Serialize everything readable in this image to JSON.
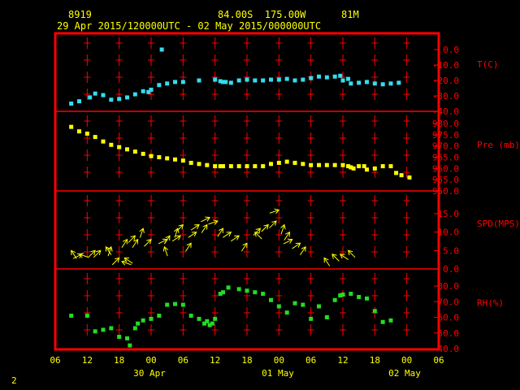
{
  "header": {
    "station_id": "8919",
    "location": "84.00S  175.00W",
    "elevation": "81M",
    "time_range": "29 Apr 2015/120000UTC - 02 May 2015/000000UTC"
  },
  "page_number": "2",
  "colors": {
    "background": "#000000",
    "frame": "#ff0000",
    "ticks": "#ff0000",
    "temperature": "#33ddee",
    "pressure": "#ffff00",
    "wind": "#ffff00",
    "humidity": "#22dd22",
    "axis_text": "#ff0000",
    "time_text": "#ffff00"
  },
  "chart_data": {
    "type": "scatter",
    "x_unit": "hours since 29 Apr 2015 06 UTC",
    "x_tick_labels": [
      "06",
      "12",
      "18",
      "00",
      "06",
      "12",
      "18",
      "00",
      "06",
      "12",
      "18",
      "00",
      "06"
    ],
    "date_labels": [
      "30 Apr",
      "01 May",
      "02 May"
    ],
    "panels": [
      {
        "label": "T(C)",
        "ylim": [
          -40,
          0
        ],
        "tick_labels": [
          "0.0",
          "-10.0",
          "-20.0",
          "-30.0",
          "-40.0"
        ],
        "points": [
          [
            6,
            -35
          ],
          [
            9,
            -33.5
          ],
          [
            13,
            -31
          ],
          [
            15,
            -28.5
          ],
          [
            18,
            -29.5
          ],
          [
            21,
            -32.5
          ],
          [
            24,
            -32
          ],
          [
            27,
            -31
          ],
          [
            30,
            -29
          ],
          [
            33,
            -27
          ],
          [
            35,
            -27.5
          ],
          [
            36,
            -26
          ],
          [
            39,
            -23
          ],
          [
            40,
            0
          ],
          [
            42,
            -22
          ],
          [
            45,
            -21
          ],
          [
            48,
            -21
          ],
          [
            54,
            -20
          ],
          [
            60,
            -19.5
          ],
          [
            62,
            -20.5
          ],
          [
            63,
            -21
          ],
          [
            64,
            -21
          ],
          [
            66,
            -21.5
          ],
          [
            69,
            -20
          ],
          [
            72,
            -19.5
          ],
          [
            75,
            -20
          ],
          [
            78,
            -20
          ],
          [
            81,
            -19.5
          ],
          [
            84,
            -19.5
          ],
          [
            87,
            -19
          ],
          [
            90,
            -20
          ],
          [
            93,
            -19.5
          ],
          [
            96,
            -18.5
          ],
          [
            99,
            -17.5
          ],
          [
            102,
            -18
          ],
          [
            105,
            -17.5
          ],
          [
            107,
            -17
          ],
          [
            108,
            -20
          ],
          [
            110,
            -19
          ],
          [
            111,
            -22
          ],
          [
            114,
            -21.5
          ],
          [
            117,
            -21
          ],
          [
            120,
            -22
          ],
          [
            123,
            -22.5
          ],
          [
            126,
            -22
          ],
          [
            129,
            -21.5
          ]
        ]
      },
      {
        "label": "Pre (mb)",
        "ylim": [
          950,
          980
        ],
        "tick_labels": [
          "980.0",
          "975.0",
          "970.0",
          "965.0",
          "960.0",
          "955.0",
          "950.0"
        ],
        "points": [
          [
            6,
            978.5
          ],
          [
            9,
            976.5
          ],
          [
            12,
            975.5
          ],
          [
            15,
            974
          ],
          [
            18,
            972
          ],
          [
            21,
            970.5
          ],
          [
            24,
            969.5
          ],
          [
            27,
            968.5
          ],
          [
            30,
            967.5
          ],
          [
            33,
            966.5
          ],
          [
            36,
            965.5
          ],
          [
            39,
            965
          ],
          [
            42,
            964.5
          ],
          [
            45,
            964
          ],
          [
            48,
            963.5
          ],
          [
            51,
            962.5
          ],
          [
            54,
            962
          ],
          [
            57,
            961.5
          ],
          [
            60,
            961
          ],
          [
            62,
            961
          ],
          [
            63,
            961
          ],
          [
            66,
            961
          ],
          [
            69,
            961
          ],
          [
            72,
            961
          ],
          [
            75,
            961
          ],
          [
            78,
            961
          ],
          [
            81,
            962
          ],
          [
            84,
            962.5
          ],
          [
            87,
            963
          ],
          [
            90,
            962.5
          ],
          [
            93,
            962
          ],
          [
            96,
            961.5
          ],
          [
            99,
            961.5
          ],
          [
            102,
            961.5
          ],
          [
            105,
            961.5
          ],
          [
            108,
            961.5
          ],
          [
            110,
            961
          ],
          [
            111,
            960.5
          ],
          [
            112,
            960
          ],
          [
            114,
            961
          ],
          [
            116,
            961
          ],
          [
            117,
            959.5
          ],
          [
            120,
            960
          ],
          [
            123,
            961
          ],
          [
            126,
            961
          ],
          [
            128,
            958
          ],
          [
            130,
            957
          ],
          [
            133,
            956
          ]
        ]
      },
      {
        "label": "SPD(MPS)",
        "ylim": [
          0,
          15
        ],
        "tick_labels": [
          "15.0",
          "10.0",
          "5.0",
          "0.0"
        ],
        "points": [
          [
            6,
            5
          ],
          [
            9,
            4
          ],
          [
            12,
            3.5
          ],
          [
            15,
            5
          ],
          [
            18,
            5.5
          ],
          [
            19,
            6
          ],
          [
            22,
            4
          ],
          [
            24,
            2
          ],
          [
            26,
            8
          ],
          [
            28,
            3
          ],
          [
            29,
            7.5
          ],
          [
            32,
            10
          ],
          [
            33,
            8.5
          ],
          [
            36,
            8
          ],
          [
            39,
            6
          ],
          [
            41,
            9
          ],
          [
            43,
            7
          ],
          [
            45,
            8
          ],
          [
            46,
            9
          ],
          [
            48,
            8.5
          ],
          [
            50,
            7
          ],
          [
            53,
            12.5
          ],
          [
            54,
            11.5
          ],
          [
            57,
            13.5
          ],
          [
            59,
            10
          ],
          [
            61,
            12.5
          ],
          [
            63,
            11.5
          ],
          [
            66,
            10
          ],
          [
            69,
            8
          ],
          [
            72,
            7
          ],
          [
            75,
            9.5
          ],
          [
            78,
            10.5
          ],
          [
            81,
            11
          ],
          [
            84,
            12
          ],
          [
            87,
            14
          ],
          [
            90,
            11
          ],
          [
            92,
            6
          ],
          [
            95,
            7
          ],
          [
            97,
            5.5
          ],
          [
            99,
            4.5
          ],
          [
            102,
            3
          ],
          [
            104,
            3.5
          ],
          [
            108,
            4.5
          ],
          [
            110,
            5
          ],
          [
            113,
            5
          ]
        ],
        "arrows": [
          [
            6,
            5,
            2,
            3
          ],
          [
            9,
            4,
            3,
            1
          ],
          [
            10,
            4,
            -2,
            1
          ],
          [
            15,
            5,
            -2,
            2
          ],
          [
            17,
            5,
            -3,
            3
          ],
          [
            19,
            6,
            2,
            3
          ],
          [
            21,
            6,
            -1,
            3
          ],
          [
            24,
            3,
            -3,
            3
          ],
          [
            25,
            2,
            3,
            1
          ],
          [
            26,
            3,
            3,
            2
          ],
          [
            27,
            8,
            -2,
            3
          ],
          [
            30,
            9,
            -3,
            3
          ],
          [
            31,
            8,
            -2,
            3
          ],
          [
            33,
            11,
            -1,
            3
          ],
          [
            36,
            8,
            -2,
            2
          ],
          [
            41,
            6,
            1,
            3
          ],
          [
            42,
            8,
            -2,
            1
          ],
          [
            43,
            9,
            -2,
            3
          ],
          [
            46,
            11,
            -1,
            3
          ],
          [
            47,
            9,
            -3,
            2
          ],
          [
            48,
            12,
            -2,
            2
          ],
          [
            51,
            7,
            -2,
            3
          ],
          [
            53,
            10,
            -3,
            2
          ],
          [
            54,
            12,
            -3,
            2
          ],
          [
            57,
            12,
            -2,
            3
          ],
          [
            58,
            14,
            -2,
            1
          ],
          [
            61,
            13,
            -3,
            1
          ],
          [
            63,
            11,
            -2,
            3
          ],
          [
            66,
            10,
            -3,
            2
          ],
          [
            69,
            9,
            -3,
            2
          ],
          [
            72,
            7,
            -2,
            3
          ],
          [
            75,
            10,
            2,
            2
          ],
          [
            77,
            11,
            -2,
            2
          ],
          [
            80,
            12,
            -2,
            2
          ],
          [
            83,
            13,
            -2,
            2
          ],
          [
            84,
            16,
            -3,
            1
          ],
          [
            86,
            12,
            -1,
            3
          ],
          [
            88,
            10,
            -2,
            3
          ],
          [
            89,
            8,
            -2,
            1
          ],
          [
            92,
            7,
            -3,
            2
          ],
          [
            94,
            6,
            -2,
            3
          ],
          [
            101,
            3,
            2,
            3
          ],
          [
            104,
            4,
            2,
            2
          ],
          [
            107,
            4,
            3,
            2
          ],
          [
            110,
            5,
            2,
            2
          ]
        ]
      },
      {
        "label": "RH(%)",
        "ylim": [
          40,
          80
        ],
        "tick_labels": [
          "80.0",
          "70.0",
          "60.0",
          "50.0",
          "40.0"
        ],
        "points": [
          [
            6,
            61
          ],
          [
            12,
            61
          ],
          [
            15,
            51
          ],
          [
            18,
            52
          ],
          [
            21,
            53
          ],
          [
            24,
            47.5
          ],
          [
            27,
            46.5
          ],
          [
            28,
            42
          ],
          [
            30,
            53
          ],
          [
            31,
            56
          ],
          [
            33,
            58
          ],
          [
            36,
            59
          ],
          [
            39,
            61
          ],
          [
            42,
            68
          ],
          [
            45,
            68.5
          ],
          [
            48,
            68
          ],
          [
            51,
            61
          ],
          [
            54,
            59
          ],
          [
            56,
            56
          ],
          [
            57,
            57.5
          ],
          [
            58,
            55
          ],
          [
            59,
            56
          ],
          [
            60,
            59
          ],
          [
            62,
            75
          ],
          [
            63,
            76
          ],
          [
            65,
            79
          ],
          [
            69,
            78
          ],
          [
            72,
            77
          ],
          [
            75,
            76
          ],
          [
            78,
            75
          ],
          [
            81,
            71
          ],
          [
            84,
            67
          ],
          [
            87,
            63
          ],
          [
            90,
            69
          ],
          [
            93,
            68
          ],
          [
            96,
            59
          ],
          [
            99,
            67
          ],
          [
            102,
            60
          ],
          [
            105,
            71
          ],
          [
            107,
            74
          ],
          [
            108,
            74.5
          ],
          [
            111,
            75
          ],
          [
            114,
            73
          ],
          [
            117,
            72
          ],
          [
            120,
            64
          ],
          [
            123,
            57
          ],
          [
            126,
            58
          ]
        ]
      }
    ]
  }
}
